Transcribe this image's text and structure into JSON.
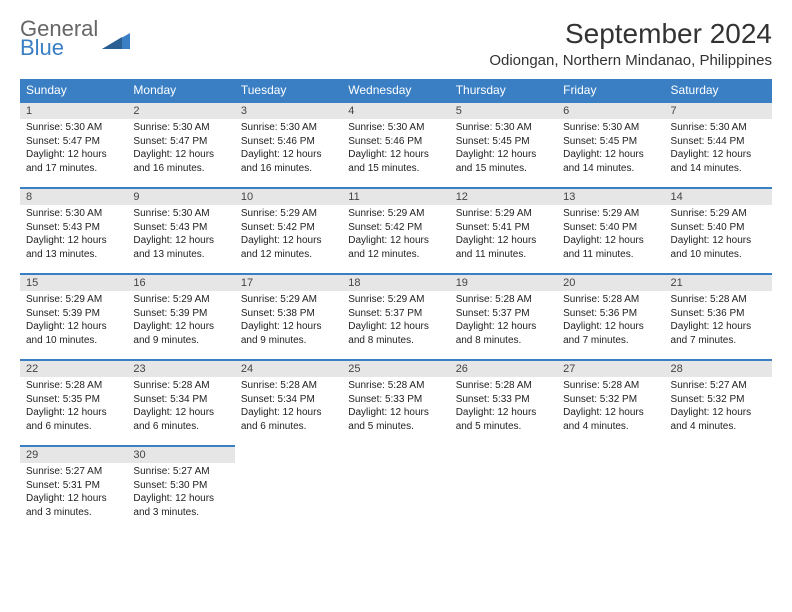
{
  "brand": {
    "word1": "General",
    "word2": "Blue"
  },
  "title": "September 2024",
  "location": "Odiongan, Northern Mindanao, Philippines",
  "colors": {
    "brand_blue": "#3a7fc4",
    "header_bg": "#3a7fc4",
    "daynum_bg": "#e6e6e6"
  },
  "weekdays": [
    "Sunday",
    "Monday",
    "Tuesday",
    "Wednesday",
    "Thursday",
    "Friday",
    "Saturday"
  ],
  "days": [
    {
      "n": "1",
      "sr": "Sunrise: 5:30 AM",
      "ss": "Sunset: 5:47 PM",
      "dl1": "Daylight: 12 hours",
      "dl2": "and 17 minutes."
    },
    {
      "n": "2",
      "sr": "Sunrise: 5:30 AM",
      "ss": "Sunset: 5:47 PM",
      "dl1": "Daylight: 12 hours",
      "dl2": "and 16 minutes."
    },
    {
      "n": "3",
      "sr": "Sunrise: 5:30 AM",
      "ss": "Sunset: 5:46 PM",
      "dl1": "Daylight: 12 hours",
      "dl2": "and 16 minutes."
    },
    {
      "n": "4",
      "sr": "Sunrise: 5:30 AM",
      "ss": "Sunset: 5:46 PM",
      "dl1": "Daylight: 12 hours",
      "dl2": "and 15 minutes."
    },
    {
      "n": "5",
      "sr": "Sunrise: 5:30 AM",
      "ss": "Sunset: 5:45 PM",
      "dl1": "Daylight: 12 hours",
      "dl2": "and 15 minutes."
    },
    {
      "n": "6",
      "sr": "Sunrise: 5:30 AM",
      "ss": "Sunset: 5:45 PM",
      "dl1": "Daylight: 12 hours",
      "dl2": "and 14 minutes."
    },
    {
      "n": "7",
      "sr": "Sunrise: 5:30 AM",
      "ss": "Sunset: 5:44 PM",
      "dl1": "Daylight: 12 hours",
      "dl2": "and 14 minutes."
    },
    {
      "n": "8",
      "sr": "Sunrise: 5:30 AM",
      "ss": "Sunset: 5:43 PM",
      "dl1": "Daylight: 12 hours",
      "dl2": "and 13 minutes."
    },
    {
      "n": "9",
      "sr": "Sunrise: 5:30 AM",
      "ss": "Sunset: 5:43 PM",
      "dl1": "Daylight: 12 hours",
      "dl2": "and 13 minutes."
    },
    {
      "n": "10",
      "sr": "Sunrise: 5:29 AM",
      "ss": "Sunset: 5:42 PM",
      "dl1": "Daylight: 12 hours",
      "dl2": "and 12 minutes."
    },
    {
      "n": "11",
      "sr": "Sunrise: 5:29 AM",
      "ss": "Sunset: 5:42 PM",
      "dl1": "Daylight: 12 hours",
      "dl2": "and 12 minutes."
    },
    {
      "n": "12",
      "sr": "Sunrise: 5:29 AM",
      "ss": "Sunset: 5:41 PM",
      "dl1": "Daylight: 12 hours",
      "dl2": "and 11 minutes."
    },
    {
      "n": "13",
      "sr": "Sunrise: 5:29 AM",
      "ss": "Sunset: 5:40 PM",
      "dl1": "Daylight: 12 hours",
      "dl2": "and 11 minutes."
    },
    {
      "n": "14",
      "sr": "Sunrise: 5:29 AM",
      "ss": "Sunset: 5:40 PM",
      "dl1": "Daylight: 12 hours",
      "dl2": "and 10 minutes."
    },
    {
      "n": "15",
      "sr": "Sunrise: 5:29 AM",
      "ss": "Sunset: 5:39 PM",
      "dl1": "Daylight: 12 hours",
      "dl2": "and 10 minutes."
    },
    {
      "n": "16",
      "sr": "Sunrise: 5:29 AM",
      "ss": "Sunset: 5:39 PM",
      "dl1": "Daylight: 12 hours",
      "dl2": "and 9 minutes."
    },
    {
      "n": "17",
      "sr": "Sunrise: 5:29 AM",
      "ss": "Sunset: 5:38 PM",
      "dl1": "Daylight: 12 hours",
      "dl2": "and 9 minutes."
    },
    {
      "n": "18",
      "sr": "Sunrise: 5:29 AM",
      "ss": "Sunset: 5:37 PM",
      "dl1": "Daylight: 12 hours",
      "dl2": "and 8 minutes."
    },
    {
      "n": "19",
      "sr": "Sunrise: 5:28 AM",
      "ss": "Sunset: 5:37 PM",
      "dl1": "Daylight: 12 hours",
      "dl2": "and 8 minutes."
    },
    {
      "n": "20",
      "sr": "Sunrise: 5:28 AM",
      "ss": "Sunset: 5:36 PM",
      "dl1": "Daylight: 12 hours",
      "dl2": "and 7 minutes."
    },
    {
      "n": "21",
      "sr": "Sunrise: 5:28 AM",
      "ss": "Sunset: 5:36 PM",
      "dl1": "Daylight: 12 hours",
      "dl2": "and 7 minutes."
    },
    {
      "n": "22",
      "sr": "Sunrise: 5:28 AM",
      "ss": "Sunset: 5:35 PM",
      "dl1": "Daylight: 12 hours",
      "dl2": "and 6 minutes."
    },
    {
      "n": "23",
      "sr": "Sunrise: 5:28 AM",
      "ss": "Sunset: 5:34 PM",
      "dl1": "Daylight: 12 hours",
      "dl2": "and 6 minutes."
    },
    {
      "n": "24",
      "sr": "Sunrise: 5:28 AM",
      "ss": "Sunset: 5:34 PM",
      "dl1": "Daylight: 12 hours",
      "dl2": "and 6 minutes."
    },
    {
      "n": "25",
      "sr": "Sunrise: 5:28 AM",
      "ss": "Sunset: 5:33 PM",
      "dl1": "Daylight: 12 hours",
      "dl2": "and 5 minutes."
    },
    {
      "n": "26",
      "sr": "Sunrise: 5:28 AM",
      "ss": "Sunset: 5:33 PM",
      "dl1": "Daylight: 12 hours",
      "dl2": "and 5 minutes."
    },
    {
      "n": "27",
      "sr": "Sunrise: 5:28 AM",
      "ss": "Sunset: 5:32 PM",
      "dl1": "Daylight: 12 hours",
      "dl2": "and 4 minutes."
    },
    {
      "n": "28",
      "sr": "Sunrise: 5:27 AM",
      "ss": "Sunset: 5:32 PM",
      "dl1": "Daylight: 12 hours",
      "dl2": "and 4 minutes."
    },
    {
      "n": "29",
      "sr": "Sunrise: 5:27 AM",
      "ss": "Sunset: 5:31 PM",
      "dl1": "Daylight: 12 hours",
      "dl2": "and 3 minutes."
    },
    {
      "n": "30",
      "sr": "Sunrise: 5:27 AM",
      "ss": "Sunset: 5:30 PM",
      "dl1": "Daylight: 12 hours",
      "dl2": "and 3 minutes."
    }
  ]
}
